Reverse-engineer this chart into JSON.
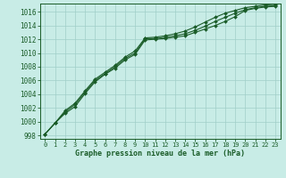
{
  "xlabel": "Graphe pression niveau de la mer (hPa)",
  "xlim": [
    -0.5,
    23.5
  ],
  "ylim": [
    997.5,
    1017.2
  ],
  "yticks": [
    998,
    1000,
    1002,
    1004,
    1006,
    1008,
    1010,
    1012,
    1014,
    1016
  ],
  "xticks": [
    0,
    1,
    2,
    3,
    4,
    5,
    6,
    7,
    8,
    9,
    10,
    11,
    12,
    13,
    14,
    15,
    16,
    17,
    18,
    19,
    20,
    21,
    22,
    23
  ],
  "background_color": "#c8ece6",
  "grid_color": "#a0cfc8",
  "line_color": "#1a5c28",
  "line_a": [
    998.2,
    999.8,
    1001.2,
    1002.2,
    1004.1,
    1005.8,
    1006.9,
    1007.8,
    1009.0,
    1009.8,
    1011.9,
    1012.0,
    1012.1,
    1012.3,
    1012.5,
    1013.0,
    1013.5,
    1014.0,
    1014.6,
    1015.3,
    1016.2,
    1016.5,
    1016.7,
    1016.8
  ],
  "line_b": [
    998.2,
    999.8,
    1001.4,
    1002.5,
    1004.3,
    1006.0,
    1007.0,
    1008.0,
    1009.2,
    1010.0,
    1012.1,
    1012.1,
    1012.3,
    1012.5,
    1012.8,
    1013.3,
    1013.9,
    1014.6,
    1015.2,
    1015.8,
    1016.3,
    1016.6,
    1016.8,
    1016.9
  ],
  "line_c": [
    998.2,
    999.8,
    1001.6,
    1002.7,
    1004.5,
    1006.2,
    1007.2,
    1008.2,
    1009.4,
    1010.3,
    1012.2,
    1012.3,
    1012.5,
    1012.8,
    1013.2,
    1013.8,
    1014.5,
    1015.2,
    1015.8,
    1016.2,
    1016.6,
    1016.8,
    1017.0,
    1017.1
  ]
}
